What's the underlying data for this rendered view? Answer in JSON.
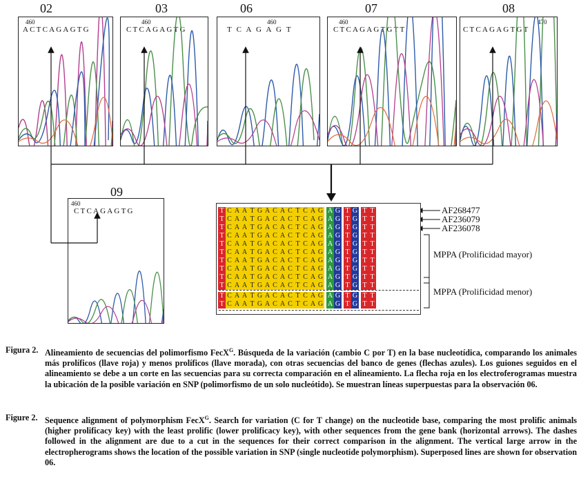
{
  "colors": {
    "yellow": "#f4cf00",
    "red": "#d9262a",
    "green": "#2a9a3c",
    "blue": "#233a99"
  },
  "panels": [
    {
      "label": "02",
      "pos": "460",
      "seq": "ACTCAGAGTG"
    },
    {
      "label": "03",
      "pos": "460",
      "seq": "CTCAGAGTG"
    },
    {
      "label": "06",
      "pos": "460",
      "seq": "T C A   G A   G T"
    },
    {
      "label": "07",
      "pos": "460",
      "seq": "CTCAGAGTGTT"
    },
    {
      "label": "08",
      "pos": "470",
      "seq": "CTCAGAGTGT"
    },
    {
      "label": "09",
      "pos": "460",
      "seq": "CTCAGAGTG"
    }
  ],
  "alignment": {
    "bases": [
      "T",
      "C",
      "A",
      "A",
      "T",
      "G",
      "A",
      "C",
      "A",
      "C",
      "T",
      "C",
      "A",
      "G",
      "A",
      "G",
      "T",
      "G",
      "T",
      "T"
    ],
    "accessions": [
      "AF268477",
      "AF236079",
      "AF236078"
    ],
    "group_major": "MPPA (Prolificidad mayor)",
    "group_minor": "MPPA (Prolificidad menor)"
  },
  "caption_es": {
    "label": "Figura 2.",
    "text": "Alineamiento de secuencias del polimorfismo FecX",
    "sup": "G",
    "rest": ". Búsqueda de la variación (cambio C por T) en la base nucleotídica, comparando los animales más prolíficos (llave roja) y menos prolíficos (llave morada), con otras secuencias del banco de genes (flechas azules). Los guiones seguidos en el alineamiento se debe a un corte en las secuencias para su correcta comparación en el alineamiento. La flecha roja en los electroferogramas muestra la ubicación de la posible variación en SNP (polimorfismo de un solo nucleótido). Se muestran líneas superpuestas para la observación 06."
  },
  "caption_en": {
    "label": "Figure 2.",
    "text": "Sequence alignment of polymorphism FecX",
    "sup": "G",
    "rest": ". Search for variation (C for T change) on the nucleotide base, comparing the most prolific animals (higher prolificacy key) with the least prolific (lower prolificacy key), with other sequences from the gene bank (horizontal arrows). The dashes followed in the alignment are due to a cut in the sequences for their correct comparison in the alignment. The vertical large arrow in the electropherograms shows the location of the possible variation in SNP (single nucleotide polymorphism). Superposed lines are shown for observation 06."
  }
}
